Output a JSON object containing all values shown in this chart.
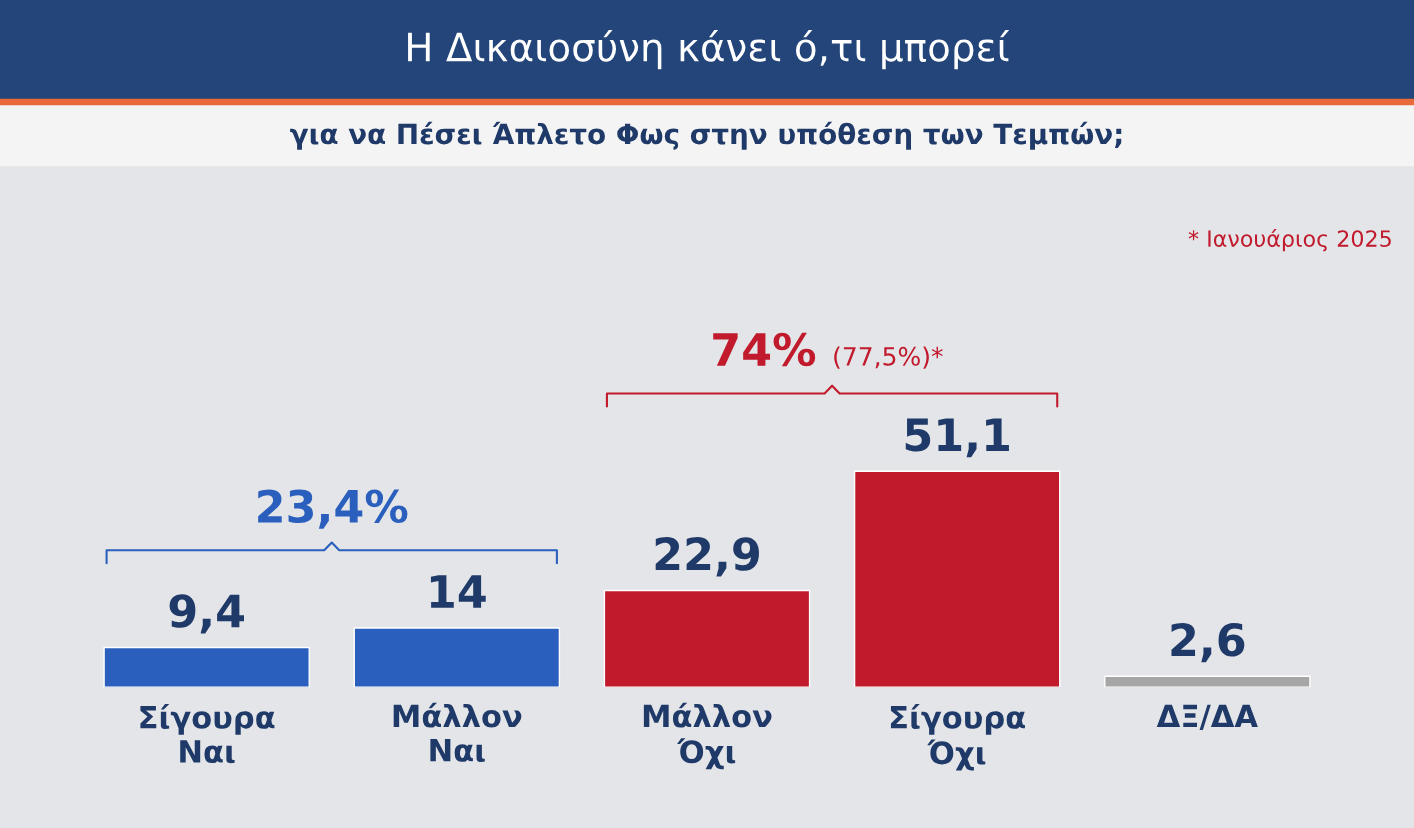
{
  "chart_data": {
    "type": "bar",
    "title": "Η Δικαιοσύνη κάνει ό,τι μπορεί",
    "subtitle": "για να Πέσει Άπλετο Φως στην υπόθεση των Τεμπών;",
    "categories": [
      "Σίγουρα\nΝαι",
      "Μάλλον\nΝαι",
      "Μάλλον\nΌχι",
      "Σίγουρα\nΌχι",
      "ΔΞ/ΔΑ"
    ],
    "values": [
      9.4,
      14,
      22.9,
      51.1,
      2.6
    ],
    "value_labels": [
      "9,4",
      "14",
      "22,9",
      "51,1",
      "2,6"
    ],
    "colors": [
      "#2a5fbd",
      "#2a5fbd",
      "#c01a2c",
      "#c01a2c",
      "#a6a6a6"
    ],
    "annotations": [
      "23,4%",
      "74%",
      "(77,5%)*",
      "* Ιανουάριος 2025"
    ],
    "grid": false,
    "legend": false
  }
}
